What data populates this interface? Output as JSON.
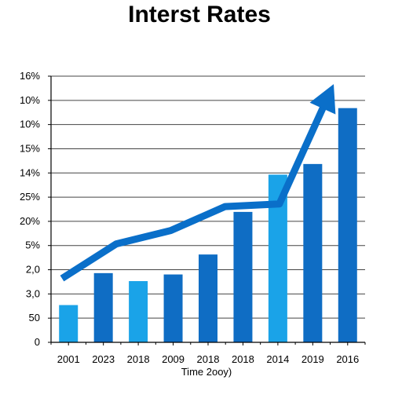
{
  "chart_data": {
    "type": "bar",
    "title": "Interst Rates",
    "xlabel": "Time 2ooy)",
    "ylabel": "",
    "categories": [
      "2001",
      "2023",
      "2018",
      "2009",
      "2018",
      "2018",
      "2014",
      "2019",
      "2016"
    ],
    "y_tick_labels": [
      "16%",
      "10%",
      "10%",
      "15%",
      "14%",
      "25%",
      "20%",
      "5%",
      "2,0",
      "3,0",
      "50",
      "0"
    ],
    "series": [
      {
        "values": [
          14,
          26,
          23,
          25.5,
          33,
          49,
          63,
          67,
          88
        ],
        "colors": [
          "#1aa3e8",
          "#0f6dc4",
          "#1aa3e8",
          "#0f6dc4",
          "#0f6dc4",
          "#0f6dc4",
          "#1aa3e8",
          "#0f6dc4",
          "#0f6dc4"
        ]
      }
    ],
    "trend_line": {
      "values": [
        24,
        37,
        42,
        51,
        52,
        97
      ]
    },
    "ylim": [
      0,
      100
    ],
    "grid": true,
    "legend": "none",
    "colors": {
      "bar_dark": "#0f6dc4",
      "bar_light": "#1aa3e8",
      "arrow": "#0a6fc9",
      "grid": "#444444"
    }
  }
}
